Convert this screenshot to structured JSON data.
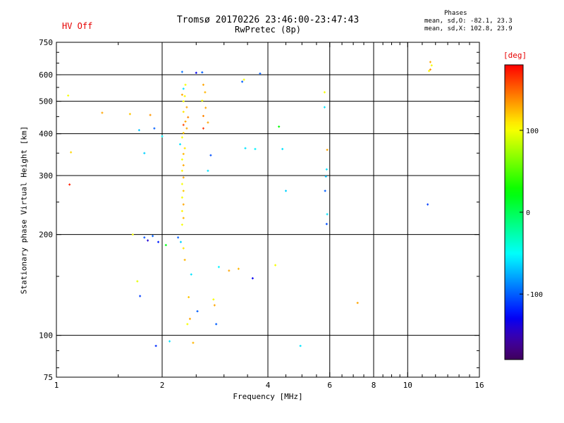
{
  "header": {
    "hv_status": "HV Off",
    "title_line1": "Tromsø 20170226 23:46:00-23:47:43",
    "title_line2": "RwPretec (8p)",
    "phases_title": "Phases",
    "phases_line1": "mean, sd,O: -82.1, 23.3",
    "phases_line2": "mean, sd,X: 102.8, 23.9"
  },
  "colors": {
    "accent_red": "#e60000",
    "axis": "#000000",
    "background": "#ffffff"
  },
  "chart_data": {
    "type": "scatter",
    "title": "Tromsø 20170226 23:46:00-23:47:43 RwPretec (8p)",
    "xlabel": "Frequency [MHz]",
    "ylabel": "Stationary phase Virtual Height [km]",
    "x_scale": "log",
    "y_scale": "log",
    "xlim": [
      1,
      16
    ],
    "ylim": [
      75,
      750
    ],
    "x_ticks": [
      1,
      2,
      4,
      6,
      8,
      10,
      16
    ],
    "x_gridlines": [
      2,
      4,
      6,
      8,
      10
    ],
    "x_minor_ticks": [
      1.5,
      2.5,
      3,
      3.5,
      4.5,
      5,
      5.5,
      6.5,
      7,
      7.5,
      8.5,
      9,
      9.5,
      11,
      12,
      13,
      14,
      15
    ],
    "y_ticks": [
      75,
      100,
      200,
      300,
      400,
      500,
      600,
      750
    ],
    "y_gridlines": [
      100,
      200,
      300,
      400,
      500,
      600
    ],
    "y_minor_ticks": [
      80,
      90,
      150,
      250,
      350,
      450,
      550,
      650,
      700
    ],
    "grid": true,
    "legend_position": "none",
    "colorbar": {
      "label": "[deg]",
      "label_color": "#e60000",
      "range": [
        -180,
        180
      ],
      "ticks": [
        100,
        0,
        -100
      ],
      "position": "right"
    },
    "point_format": [
      "frequency_MHz",
      "virtual_height_km",
      "phase_deg"
    ],
    "points": [
      [
        1.08,
        520,
        100
      ],
      [
        1.1,
        352,
        115
      ],
      [
        1.09,
        282,
        170
      ],
      [
        1.35,
        462,
        130
      ],
      [
        1.62,
        458,
        120
      ],
      [
        1.85,
        455,
        135
      ],
      [
        1.72,
        410,
        -70
      ],
      [
        1.9,
        415,
        -100
      ],
      [
        2.0,
        393,
        -55
      ],
      [
        1.78,
        350,
        -65
      ],
      [
        1.65,
        200,
        100
      ],
      [
        1.78,
        196,
        -105
      ],
      [
        1.82,
        192,
        -140
      ],
      [
        1.88,
        198,
        -100
      ],
      [
        1.95,
        190,
        -120
      ],
      [
        1.7,
        145,
        95
      ],
      [
        1.73,
        131,
        -110
      ],
      [
        1.92,
        93,
        -115
      ],
      [
        2.05,
        186,
        20
      ],
      [
        2.28,
        612,
        -95
      ],
      [
        2.5,
        608,
        -130
      ],
      [
        2.33,
        560,
        100
      ],
      [
        2.3,
        545,
        -60
      ],
      [
        2.28,
        523,
        130
      ],
      [
        2.32,
        518,
        105
      ],
      [
        2.3,
        500,
        100
      ],
      [
        2.35,
        480,
        130
      ],
      [
        2.3,
        465,
        110
      ],
      [
        2.37,
        448,
        140
      ],
      [
        2.33,
        435,
        130
      ],
      [
        2.3,
        425,
        160
      ],
      [
        2.35,
        415,
        130
      ],
      [
        2.3,
        402,
        120
      ],
      [
        2.28,
        390,
        100
      ],
      [
        2.25,
        372,
        -60
      ],
      [
        2.32,
        362,
        110
      ],
      [
        2.3,
        348,
        125
      ],
      [
        2.28,
        335,
        100
      ],
      [
        2.3,
        322,
        130
      ],
      [
        2.28,
        310,
        105
      ],
      [
        2.3,
        296,
        130
      ],
      [
        2.28,
        283,
        100
      ],
      [
        2.3,
        270,
        120
      ],
      [
        2.28,
        258,
        100
      ],
      [
        2.3,
        246,
        130
      ],
      [
        2.28,
        235,
        105
      ],
      [
        2.3,
        224,
        125
      ],
      [
        2.28,
        214,
        100
      ],
      [
        2.22,
        196,
        -100
      ],
      [
        2.26,
        190,
        -65
      ],
      [
        2.3,
        182,
        110
      ],
      [
        2.32,
        168,
        125
      ],
      [
        2.42,
        152,
        -60
      ],
      [
        2.38,
        130,
        120
      ],
      [
        2.4,
        112,
        130
      ],
      [
        2.36,
        108,
        100
      ],
      [
        2.52,
        118,
        -100
      ],
      [
        2.45,
        95,
        125
      ],
      [
        2.1,
        96,
        -60
      ],
      [
        2.6,
        610,
        -100
      ],
      [
        2.62,
        560,
        130
      ],
      [
        2.65,
        532,
        125
      ],
      [
        2.6,
        502,
        100
      ],
      [
        2.66,
        478,
        130
      ],
      [
        2.62,
        452,
        140
      ],
      [
        2.7,
        432,
        130
      ],
      [
        2.62,
        415,
        165
      ],
      [
        2.75,
        345,
        -105
      ],
      [
        2.7,
        310,
        -60
      ],
      [
        2.9,
        160,
        -55
      ],
      [
        2.8,
        128,
        100
      ],
      [
        2.82,
        123,
        130
      ],
      [
        2.85,
        108,
        -100
      ],
      [
        3.1,
        156,
        130
      ],
      [
        3.3,
        158,
        125
      ],
      [
        3.45,
        362,
        -60
      ],
      [
        3.42,
        580,
        100
      ],
      [
        3.38,
        572,
        -100
      ],
      [
        3.8,
        605,
        -100
      ],
      [
        3.68,
        360,
        -55
      ],
      [
        3.62,
        148,
        -130
      ],
      [
        4.2,
        162,
        100
      ],
      [
        4.4,
        360,
        -60
      ],
      [
        4.3,
        420,
        25
      ],
      [
        4.5,
        270,
        -65
      ],
      [
        4.95,
        93,
        -60
      ],
      [
        5.8,
        532,
        100
      ],
      [
        5.8,
        480,
        -60
      ],
      [
        5.9,
        358,
        130
      ],
      [
        5.88,
        313,
        -60
      ],
      [
        5.85,
        298,
        -70
      ],
      [
        5.82,
        270,
        -100
      ],
      [
        5.9,
        230,
        -60
      ],
      [
        5.88,
        215,
        -105
      ],
      [
        7.2,
        125,
        130
      ],
      [
        11.6,
        655,
        130
      ],
      [
        11.7,
        640,
        100
      ],
      [
        11.6,
        622,
        135
      ],
      [
        11.5,
        616,
        105
      ],
      [
        11.4,
        246,
        -110
      ]
    ]
  }
}
